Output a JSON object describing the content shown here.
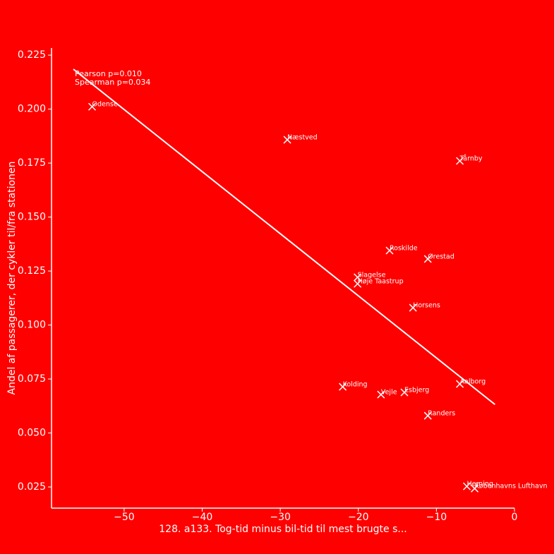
{
  "chart_data": {
    "type": "scatter",
    "x_label": "128. a133. Tog-tid minus bil-tid til mest brugte s...",
    "y_label": "Andel af passagerer, der cykler til/fra stationen",
    "annotations": [
      "Pearson p=0.010",
      "Spearman p=0.034"
    ],
    "color": "#ffffff",
    "background": "#ff0000",
    "points": [
      "Odense",
      "Næstved",
      "Tårnby",
      "Roskilde",
      "Ørestad",
      "Slagelse",
      "Høje Taastrup",
      "Horsens",
      "Aalborg",
      "Kolding",
      "Vejle",
      "Esbjerg",
      "Randers",
      "Herning",
      "Københavns Lufthavn"
    ],
    "x": [
      -54.1,
      -29.1,
      -7.0,
      -16.0,
      -11.1,
      -20.1,
      -20.1,
      -13.0,
      -7.0,
      -22.0,
      -17.1,
      -14.1,
      -11.1,
      -6.1,
      -5.1
    ],
    "y": [
      0.2011,
      0.1858,
      0.176,
      0.1345,
      0.1306,
      0.1221,
      0.1191,
      0.108,
      0.0727,
      0.0714,
      0.0678,
      0.0688,
      0.058,
      0.0253,
      0.0243
    ],
    "trend_line": {
      "x": [
        -56.5,
        -2.5
      ],
      "y": [
        0.2185,
        0.0632
      ]
    },
    "xlim": [
      -59.3,
      0
    ],
    "ylim": [
      0.0152,
      0.2283
    ],
    "xticks": [
      {
        "value": -50,
        "label": "−50"
      },
      {
        "value": -40,
        "label": "−40"
      },
      {
        "value": -30,
        "label": "−30"
      },
      {
        "value": -20,
        "label": "−20"
      },
      {
        "value": -10,
        "label": "−10"
      },
      0
    ],
    "yticks": [
      {
        "value": 0.025,
        "label": "0.025"
      },
      {
        "value": 0.05,
        "label": "0.050"
      },
      {
        "value": 0.075,
        "label": "0.075"
      },
      {
        "value": 0.1,
        "label": "0.100"
      },
      {
        "value": 0.125,
        "label": "0.125"
      },
      {
        "value": 0.15,
        "label": "0.150"
      },
      {
        "value": 0.175,
        "label": "0.175"
      },
      {
        "value": 0.2,
        "label": "0.200"
      },
      {
        "value": 0.225,
        "label": "0.225"
      }
    ]
  }
}
